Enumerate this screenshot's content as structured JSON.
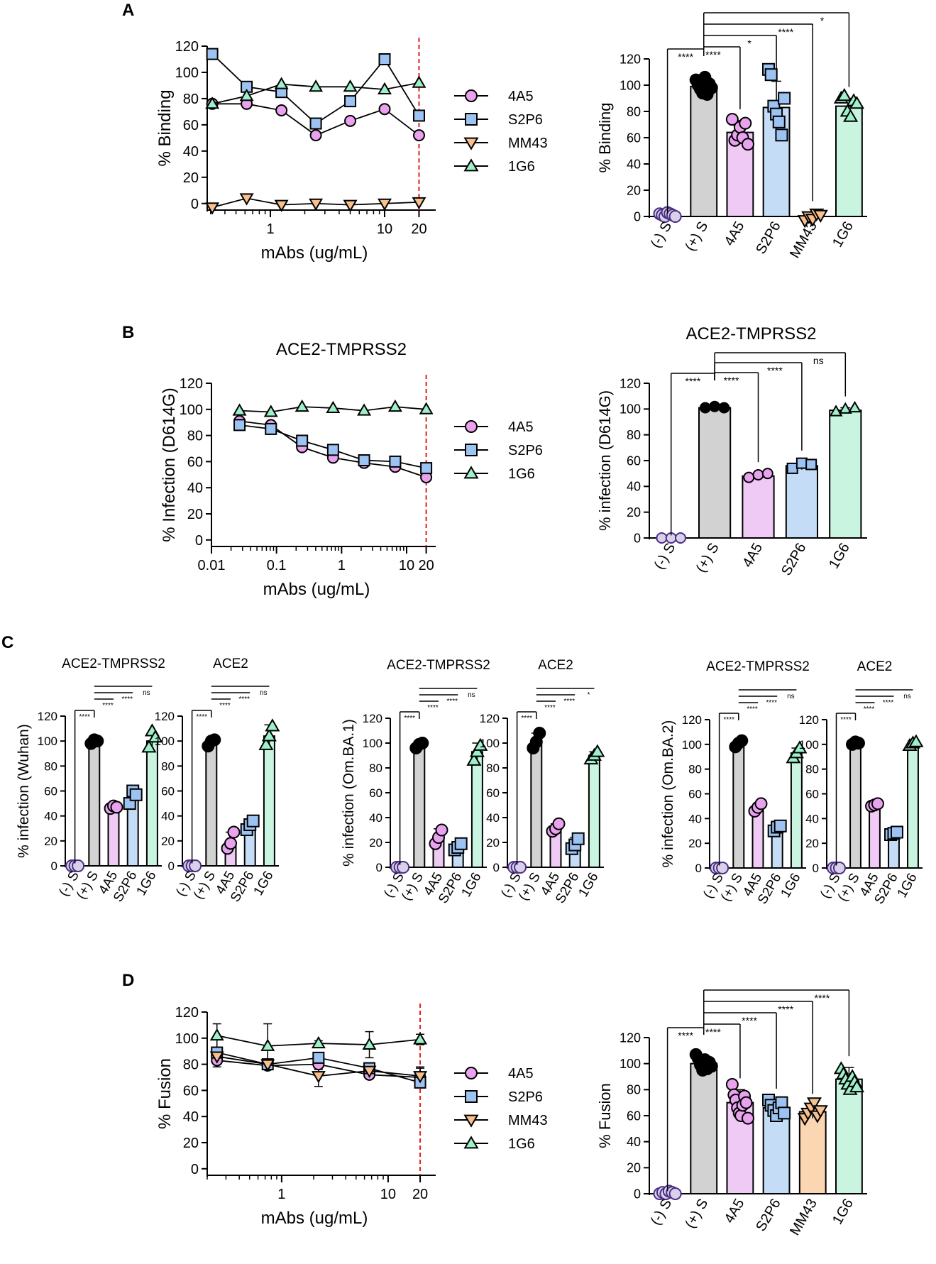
{
  "figure": {
    "panel_labels": [
      "A",
      "B",
      "C",
      "D"
    ],
    "legend_symbols": {
      "4A5": "circle",
      "S2P6": "square",
      "MM43": "triangle-down",
      "1G6": "triangle-up",
      "(-) S": "circle",
      "(+) S": "circle"
    },
    "colors": {
      "4A5": "#e8a2ee",
      "S2P6": "#9dc3f2",
      "MM43": "#f7c08d",
      "1G6": "#9df0c9",
      "(-) S": "#d9d1ea",
      "(+) S": "#c8c8c8",
      "stroke": "#000000",
      "neg_stroke": "#4b2e83",
      "ref_line": "#e02020",
      "bar_4A5": "#eecaf4",
      "bar_S2P6": "#c4dcf5",
      "bar_MM43": "#fbd6b2",
      "bar_1G6": "#c9f5e0",
      "bar_pos": "#d2d2d2",
      "bar_neg": "#ffffff"
    }
  },
  "chart_data": [
    {
      "id": "A-line",
      "panel": "A",
      "type": "line",
      "title": "",
      "xlabel": "mAbs (ug/mL)",
      "ylabel": "% Binding",
      "xscale": "log",
      "xlim": [
        0.28,
        28
      ],
      "ylim": [
        -5,
        120
      ],
      "xticks": [
        1,
        10,
        20
      ],
      "xtick_labels": [
        "1",
        "10",
        "20"
      ],
      "yticks": [
        0,
        20,
        40,
        60,
        80,
        100,
        120
      ],
      "ref_x": 20,
      "series": [
        {
          "name": "4A5",
          "x": [
            0.31,
            0.62,
            1.25,
            2.5,
            5,
            10,
            20
          ],
          "y": [
            76,
            76,
            71,
            52,
            63,
            72,
            52
          ]
        },
        {
          "name": "S2P6",
          "x": [
            0.31,
            0.62,
            1.25,
            2.5,
            5,
            10,
            20
          ],
          "y": [
            114,
            89,
            85,
            61,
            78,
            110,
            67
          ]
        },
        {
          "name": "MM43",
          "x": [
            0.31,
            0.62,
            1.25,
            2.5,
            5,
            10,
            20
          ],
          "y": [
            -3,
            4,
            -1,
            0,
            -1,
            0,
            1
          ]
        },
        {
          "name": "1G6",
          "x": [
            0.31,
            0.62,
            1.25,
            2.5,
            5,
            10,
            20
          ],
          "y": [
            76,
            82,
            91,
            89,
            89,
            87,
            92
          ]
        }
      ]
    },
    {
      "id": "A-bar",
      "panel": "A",
      "type": "bar",
      "title": "",
      "ylabel": "% Binding",
      "ylim": [
        0,
        120
      ],
      "yticks": [
        0,
        20,
        40,
        60,
        80,
        100,
        120
      ],
      "categories": [
        "(-) S",
        "(+) S",
        "4A5",
        "S2P6",
        "MM43",
        "1G6"
      ],
      "values": [
        1,
        99,
        64,
        83,
        0,
        84
      ],
      "errors": [
        1,
        6,
        9,
        20,
        3,
        6
      ],
      "points": [
        [
          2,
          1,
          0,
          3,
          2,
          1,
          0
        ],
        [
          104,
          100,
          97,
          94,
          106,
          93,
          101,
          98
        ],
        [
          74,
          58,
          62,
          68,
          60,
          71,
          55
        ],
        [
          112,
          108,
          84,
          78,
          72,
          62,
          90
        ],
        [
          -3,
          0,
          -2,
          2,
          1
        ],
        [
          90,
          92,
          80,
          76,
          88,
          86
        ]
      ],
      "significance": [
        {
          "from": 0,
          "to": 1,
          "label": "****"
        },
        {
          "from": 1,
          "to": 2,
          "label": "****"
        },
        {
          "from": 1,
          "to": 3,
          "label": "*"
        },
        {
          "from": 1,
          "to": 4,
          "label": "****"
        },
        {
          "from": 1,
          "to": 5,
          "label": "*"
        }
      ]
    },
    {
      "id": "B-line",
      "panel": "B",
      "type": "line",
      "title": "ACE2-TMPRSS2",
      "xlabel": "mAbs (ug/mL)",
      "ylabel": "% Infection (D614G)",
      "xscale": "log",
      "xlim": [
        0.01,
        28
      ],
      "ylim": [
        -5,
        120
      ],
      "xticks": [
        0.01,
        0.1,
        1,
        10,
        20
      ],
      "xtick_labels": [
        "0.01",
        "0.1",
        "1",
        "10",
        "20"
      ],
      "yticks": [
        0,
        20,
        40,
        60,
        80,
        100,
        120
      ],
      "ref_x": 20,
      "series": [
        {
          "name": "4A5",
          "x": [
            0.027,
            0.082,
            0.247,
            0.74,
            2.22,
            6.67,
            20
          ],
          "y": [
            91,
            88,
            71,
            63,
            59,
            56,
            48
          ]
        },
        {
          "name": "S2P6",
          "x": [
            0.027,
            0.082,
            0.247,
            0.74,
            2.22,
            6.67,
            20
          ],
          "y": [
            88,
            85,
            76,
            69,
            61,
            60,
            55
          ]
        },
        {
          "name": "1G6",
          "x": [
            0.027,
            0.082,
            0.247,
            0.74,
            2.22,
            6.67,
            20
          ],
          "y": [
            99,
            98,
            102,
            101,
            99,
            102,
            100
          ]
        }
      ]
    },
    {
      "id": "B-bar",
      "panel": "B",
      "type": "bar",
      "title": "ACE2-TMPRSS2",
      "ylabel": "% infection (D614G)",
      "ylim": [
        0,
        120
      ],
      "yticks": [
        0,
        20,
        40,
        60,
        80,
        100,
        120
      ],
      "categories": [
        "(-) S",
        "(+) S",
        "4A5",
        "S2P6",
        "1G6"
      ],
      "values": [
        0,
        101,
        48,
        56,
        99
      ],
      "errors": [
        0,
        1,
        2,
        3,
        2
      ],
      "points": [
        [
          0,
          0,
          0
        ],
        [
          101,
          102,
          101
        ],
        [
          47,
          49,
          50
        ],
        [
          54,
          58,
          57
        ],
        [
          98,
          100,
          101
        ]
      ],
      "significance": [
        {
          "from": 0,
          "to": 1,
          "label": "****"
        },
        {
          "from": 1,
          "to": 2,
          "label": "****"
        },
        {
          "from": 1,
          "to": 3,
          "label": "****"
        },
        {
          "from": 1,
          "to": 4,
          "label": "ns"
        }
      ]
    },
    {
      "id": "C1",
      "panel": "C",
      "type": "bar",
      "title": "ACE2-TMPRSS2",
      "ylabel": "% infection (Wuhan)",
      "ylim": [
        0,
        120
      ],
      "yticks": [
        0,
        20,
        40,
        60,
        80,
        100,
        120
      ],
      "categories": [
        "(-) S",
        "(+) S",
        "4A5",
        "S2P6",
        "1G6"
      ],
      "values": [
        0,
        100,
        47,
        55,
        100
      ],
      "errors": [
        0,
        2,
        2,
        7,
        6
      ],
      "points": [
        [
          0,
          0,
          0
        ],
        [
          98,
          101,
          100
        ],
        [
          46,
          48,
          47
        ],
        [
          50,
          60,
          57
        ],
        [
          95,
          108,
          103
        ]
      ],
      "significance": [
        {
          "from": 0,
          "to": 1,
          "label": "****"
        },
        {
          "from": 1,
          "to": 2,
          "label": "****"
        },
        {
          "from": 1,
          "to": 3,
          "label": "****"
        },
        {
          "from": 1,
          "to": 4,
          "label": "ns"
        }
      ]
    },
    {
      "id": "C2",
      "panel": "C",
      "type": "bar",
      "title": "ACE2",
      "ylabel": "",
      "ylim": [
        0,
        120
      ],
      "yticks": [
        0,
        20,
        40,
        60,
        80,
        100,
        120
      ],
      "categories": [
        "(-) S",
        "(+) S",
        "4A5",
        "S2P6",
        "1G6"
      ],
      "values": [
        0,
        99,
        19,
        32,
        104
      ],
      "errors": [
        0,
        3,
        8,
        4,
        9
      ],
      "points": [
        [
          0,
          0,
          0
        ],
        [
          96,
          100,
          101
        ],
        [
          14,
          18,
          27
        ],
        [
          29,
          33,
          36
        ],
        [
          97,
          104,
          112
        ]
      ],
      "significance": [
        {
          "from": 0,
          "to": 1,
          "label": "****"
        },
        {
          "from": 1,
          "to": 2,
          "label": "****"
        },
        {
          "from": 1,
          "to": 3,
          "label": "****"
        },
        {
          "from": 1,
          "to": 4,
          "label": "ns"
        }
      ]
    },
    {
      "id": "C3",
      "panel": "C",
      "type": "bar",
      "title": "ACE2-TMPRSS2",
      "ylabel": "% infection (Om.BA.1)",
      "ylim": [
        0,
        120
      ],
      "yticks": [
        0,
        20,
        40,
        60,
        80,
        100,
        120
      ],
      "categories": [
        "(-) S",
        "(+) S",
        "4A5",
        "S2P6",
        "1G6"
      ],
      "values": [
        0,
        98,
        25,
        16,
        93
      ],
      "errors": [
        0,
        2,
        6,
        3,
        7
      ],
      "points": [
        [
          0,
          0,
          0
        ],
        [
          96,
          99,
          100
        ],
        [
          19,
          24,
          30
        ],
        [
          14,
          16,
          19
        ],
        [
          86,
          93,
          98
        ]
      ],
      "significance": [
        {
          "from": 0,
          "to": 1,
          "label": "****"
        },
        {
          "from": 1,
          "to": 2,
          "label": "****"
        },
        {
          "from": 1,
          "to": 3,
          "label": "****"
        },
        {
          "from": 1,
          "to": 4,
          "label": "ns"
        }
      ]
    },
    {
      "id": "C4",
      "panel": "C",
      "type": "bar",
      "title": "ACE2",
      "ylabel": "",
      "ylim": [
        0,
        120
      ],
      "yticks": [
        0,
        20,
        40,
        60,
        80,
        100,
        120
      ],
      "categories": [
        "(-) S",
        "(+) S",
        "4A5",
        "S2P6",
        "1G6"
      ],
      "values": [
        0,
        102,
        31,
        19,
        90
      ],
      "errors": [
        0,
        6,
        4,
        5,
        3
      ],
      "points": [
        [
          0,
          0,
          0
        ],
        [
          96,
          101,
          108
        ],
        [
          29,
          31,
          35
        ],
        [
          15,
          18,
          23
        ],
        [
          87,
          90,
          93
        ]
      ],
      "significance": [
        {
          "from": 0,
          "to": 1,
          "label": "****"
        },
        {
          "from": 1,
          "to": 2,
          "label": "****"
        },
        {
          "from": 1,
          "to": 3,
          "label": "****"
        },
        {
          "from": 1,
          "to": 4,
          "label": "*"
        }
      ]
    },
    {
      "id": "C5",
      "panel": "C",
      "type": "bar",
      "title": "ACE2-TMPRSS2",
      "ylabel": "% infection (Om.BA.2)",
      "ylim": [
        0,
        120
      ],
      "yticks": [
        0,
        20,
        40,
        60,
        80,
        100,
        120
      ],
      "categories": [
        "(-) S",
        "(+) S",
        "4A5",
        "S2P6",
        "1G6"
      ],
      "values": [
        0,
        100,
        49,
        32,
        93
      ],
      "errors": [
        0,
        3,
        3,
        3,
        4
      ],
      "points": [
        [
          0,
          0,
          0
        ],
        [
          98,
          101,
          103
        ],
        [
          46,
          49,
          52
        ],
        [
          30,
          33,
          34
        ],
        [
          89,
          93,
          97
        ]
      ],
      "significance": [
        {
          "from": 0,
          "to": 1,
          "label": "****"
        },
        {
          "from": 1,
          "to": 2,
          "label": "****"
        },
        {
          "from": 1,
          "to": 3,
          "label": "****"
        },
        {
          "from": 1,
          "to": 4,
          "label": "ns"
        }
      ]
    },
    {
      "id": "C6",
      "panel": "C",
      "type": "bar",
      "title": "ACE2",
      "ylabel": "",
      "ylim": [
        0,
        120
      ],
      "yticks": [
        0,
        20,
        40,
        60,
        80,
        100,
        120
      ],
      "categories": [
        "(-) S",
        "(+) S",
        "4A5",
        "S2P6",
        "1G6"
      ],
      "values": [
        0,
        101,
        51,
        28,
        101
      ],
      "errors": [
        0,
        2,
        1,
        2,
        2
      ],
      "points": [
        [
          0,
          0,
          0
        ],
        [
          100,
          102,
          101
        ],
        [
          50,
          51,
          52
        ],
        [
          27,
          28,
          29
        ],
        [
          99,
          101,
          102
        ]
      ],
      "significance": [
        {
          "from": 0,
          "to": 1,
          "label": "****"
        },
        {
          "from": 1,
          "to": 2,
          "label": "****"
        },
        {
          "from": 1,
          "to": 3,
          "label": "****"
        },
        {
          "from": 1,
          "to": 4,
          "label": "ns"
        }
      ]
    },
    {
      "id": "D-line",
      "panel": "D",
      "type": "line",
      "title": "",
      "xlabel": "mAbs (ug/mL)",
      "ylabel": "% Fusion",
      "xscale": "log",
      "xlim": [
        0.2,
        28
      ],
      "ylim": [
        -5,
        120
      ],
      "xticks": [
        1,
        10,
        20
      ],
      "xtick_labels": [
        "1",
        "10",
        "20"
      ],
      "yticks": [
        0,
        20,
        40,
        60,
        80,
        100,
        120
      ],
      "ref_x": 20,
      "series": [
        {
          "name": "4A5",
          "x": [
            0.247,
            0.74,
            2.22,
            6.67,
            20
          ],
          "y": [
            83,
            79,
            80,
            72,
            70
          ]
        },
        {
          "name": "S2P6",
          "x": [
            0.247,
            0.74,
            2.22,
            6.67,
            20
          ],
          "y": [
            89,
            80,
            85,
            77,
            66
          ]
        },
        {
          "name": "MM43",
          "x": [
            0.247,
            0.74,
            2.22,
            6.67,
            20
          ],
          "y": [
            86,
            80,
            71,
            75,
            71
          ]
        },
        {
          "name": "1G6",
          "x": [
            0.247,
            0.74,
            2.22,
            6.67,
            20
          ],
          "y": [
            102,
            94,
            96,
            95,
            99
          ]
        }
      ],
      "errors": [
        {
          "name": "4A5",
          "e": [
            5,
            3,
            4,
            3,
            8
          ]
        },
        {
          "name": "1G6",
          "e": [
            9,
            17,
            2,
            10,
            4
          ]
        },
        {
          "name": "MM43",
          "e": [
            4,
            3,
            8,
            5,
            6
          ]
        }
      ]
    },
    {
      "id": "D-bar",
      "panel": "D",
      "type": "bar",
      "title": "",
      "ylabel": "% Fusion",
      "ylim": [
        0,
        120
      ],
      "yticks": [
        0,
        20,
        40,
        60,
        80,
        100,
        120
      ],
      "categories": [
        "(-) S",
        "(+) S",
        "4A5",
        "S2P6",
        "MM43",
        "1G6"
      ],
      "values": [
        1,
        100,
        70,
        66,
        63,
        88
      ],
      "errors": [
        1,
        6,
        10,
        6,
        5,
        9
      ],
      "points": [
        [
          0,
          1,
          0,
          2,
          1,
          0
        ],
        [
          107,
          104,
          99,
          95,
          103,
          96,
          101,
          98
        ],
        [
          84,
          76,
          72,
          66,
          62,
          60,
          68,
          75,
          70,
          58
        ],
        [
          72,
          68,
          64,
          60,
          66,
          70,
          62
        ],
        [
          58,
          62,
          66,
          70,
          60,
          64
        ],
        [
          96,
          92,
          88,
          84,
          80,
          90,
          86,
          82
        ]
      ],
      "significance": [
        {
          "from": 0,
          "to": 1,
          "label": "****"
        },
        {
          "from": 1,
          "to": 2,
          "label": "****"
        },
        {
          "from": 1,
          "to": 3,
          "label": "****"
        },
        {
          "from": 1,
          "to": 4,
          "label": "****"
        },
        {
          "from": 1,
          "to": 5,
          "label": "****"
        }
      ]
    }
  ]
}
